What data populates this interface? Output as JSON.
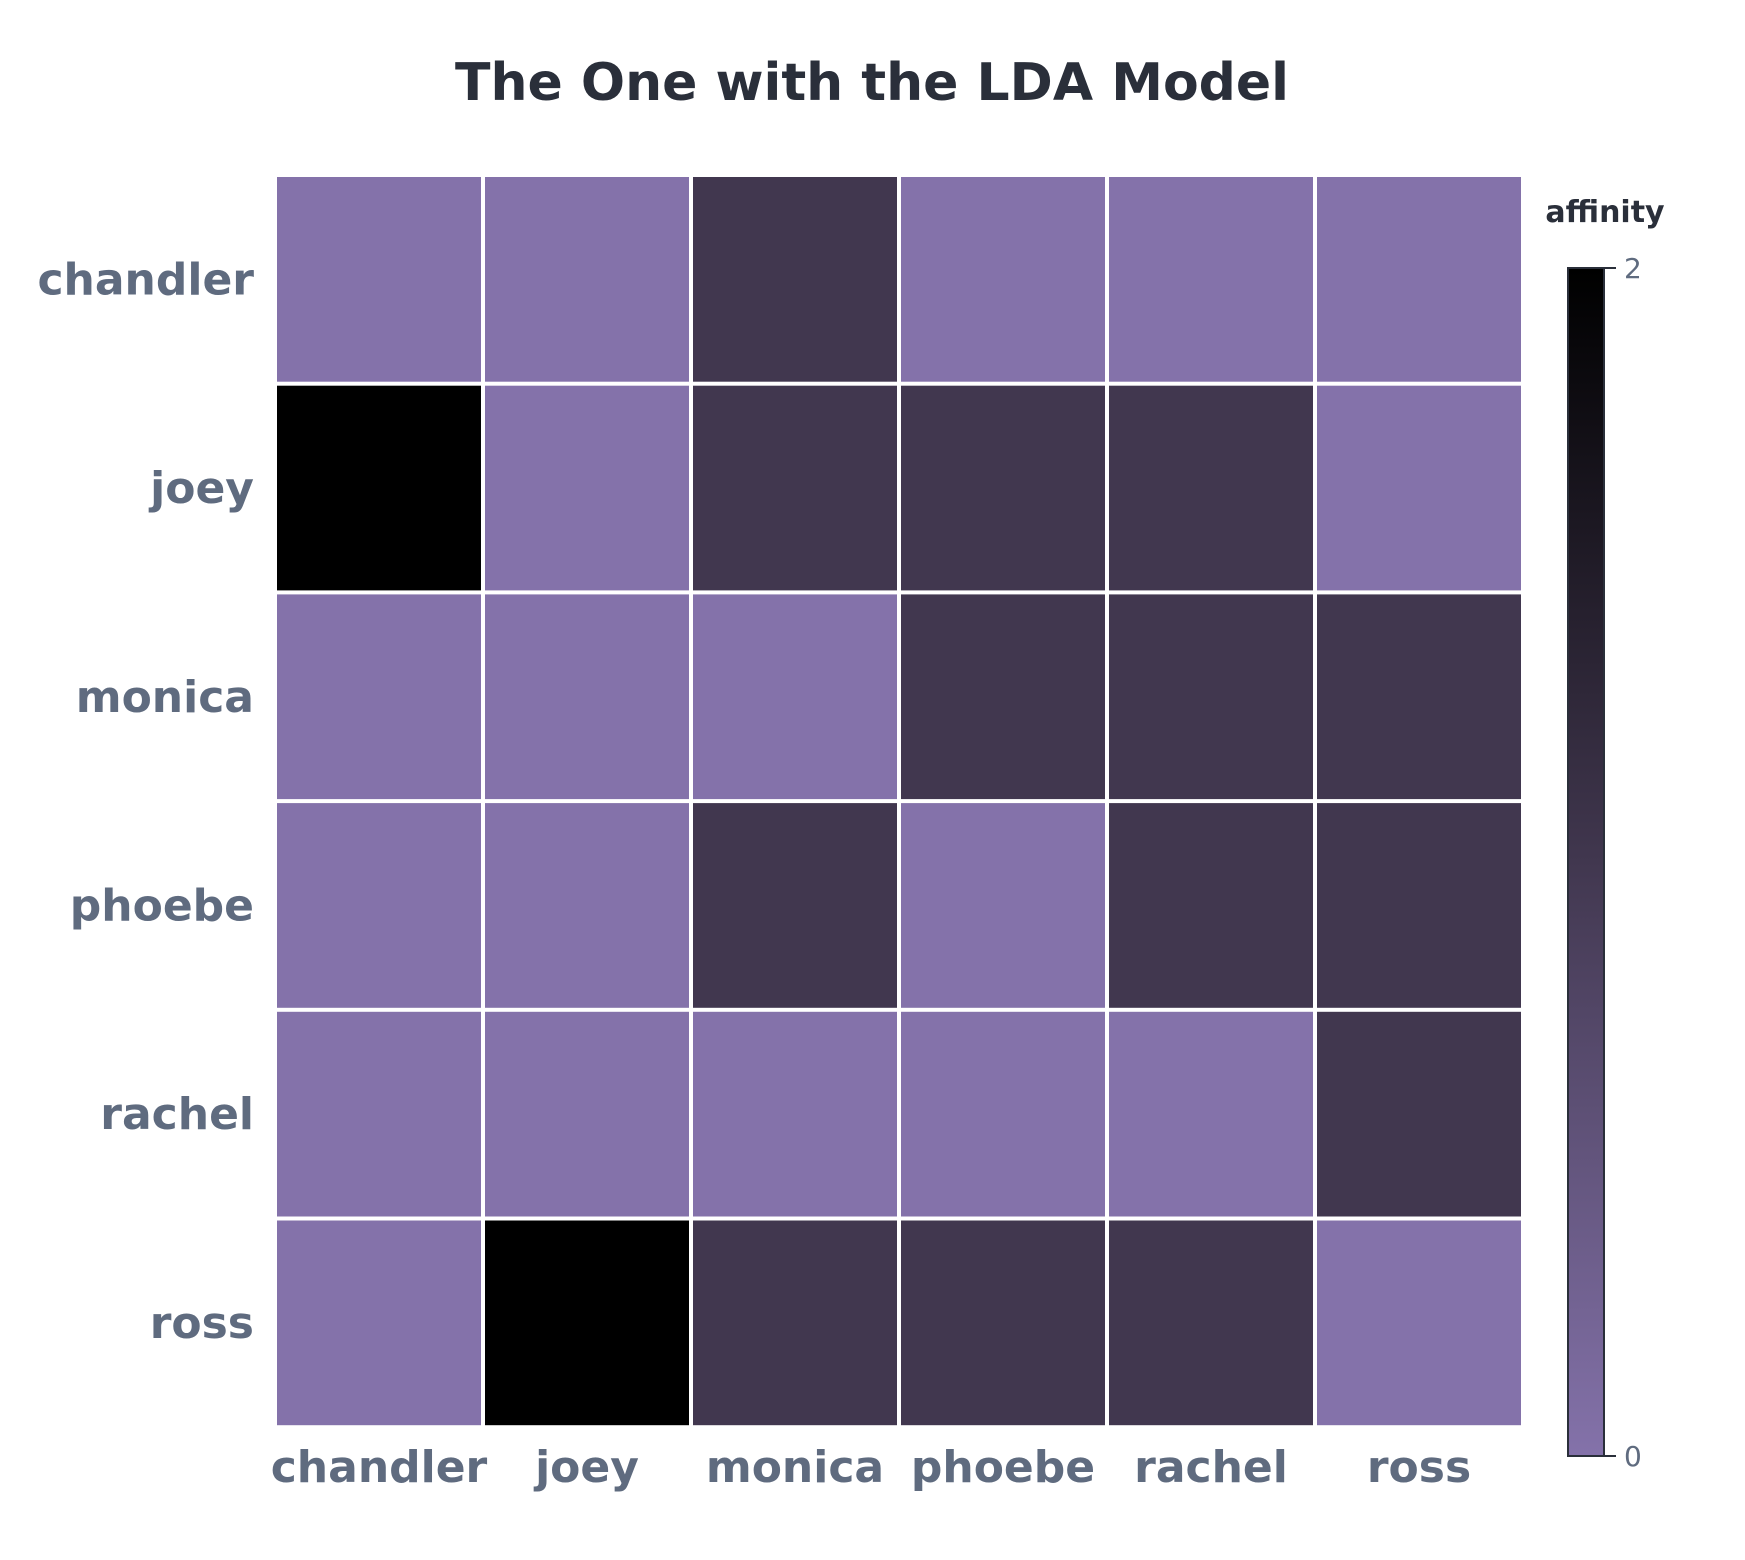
{
  "chart_data": {
    "type": "heatmap",
    "title": "The One with the LDA Model",
    "xlabel": "",
    "ylabel": "",
    "x_categories": [
      "chandler",
      "joey",
      "monica",
      "phoebe",
      "rachel",
      "ross"
    ],
    "y_categories": [
      "chandler",
      "joey",
      "monica",
      "phoebe",
      "rachel",
      "ross"
    ],
    "values": [
      [
        0,
        0,
        1,
        0,
        0,
        0
      ],
      [
        2,
        0,
        1,
        1,
        1,
        0
      ],
      [
        0,
        0,
        0,
        1,
        1,
        1
      ],
      [
        0,
        0,
        1,
        0,
        1,
        1
      ],
      [
        0,
        0,
        0,
        0,
        0,
        1
      ],
      [
        0,
        2,
        1,
        1,
        1,
        0
      ]
    ],
    "colorbar": {
      "title": "affinity",
      "min": 0,
      "max": 2,
      "ticks": [
        "0",
        "2"
      ]
    },
    "colorscale": [
      "#8472aa",
      "#41374f",
      "#000000"
    ]
  }
}
